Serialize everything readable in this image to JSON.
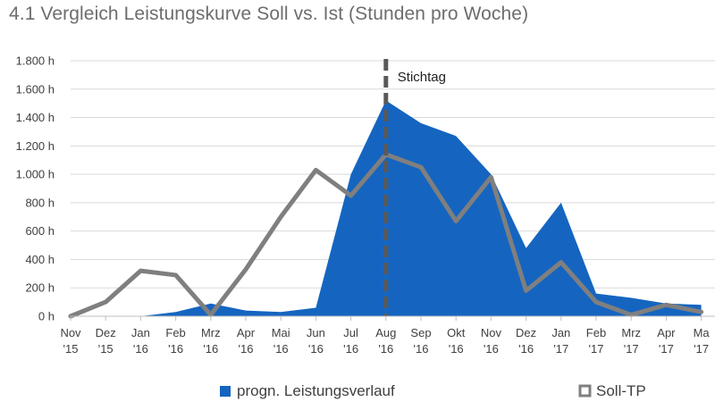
{
  "chart_data": {
    "type": "area",
    "title": "4.1 Vergleich Leistungskurve Soll vs. Ist (Stunden pro Woche)",
    "categories": [
      [
        "Nov",
        "'15"
      ],
      [
        "Dez",
        "'15"
      ],
      [
        "Jan",
        "'16"
      ],
      [
        "Feb",
        "'16"
      ],
      [
        "Mrz",
        "'16"
      ],
      [
        "Apr",
        "'16"
      ],
      [
        "Mai",
        "'16"
      ],
      [
        "Jun",
        "'16"
      ],
      [
        "Jul",
        "'16"
      ],
      [
        "Aug",
        "'16"
      ],
      [
        "Sep",
        "'16"
      ],
      [
        "Okt",
        "'16"
      ],
      [
        "Nov",
        "'16"
      ],
      [
        "Dez",
        "'16"
      ],
      [
        "Jan",
        "'17"
      ],
      [
        "Feb",
        "'17"
      ],
      [
        "Mrz",
        "'17"
      ],
      [
        "Apr",
        "'17"
      ],
      [
        "Ma",
        "'17"
      ]
    ],
    "y_ticks": [
      "0 h",
      "200 h",
      "400 h",
      "600 h",
      "800 h",
      "1.000 h",
      "1.200 h",
      "1.400 h",
      "1.600 h",
      "1.800 h"
    ],
    "ylim": [
      0,
      1800
    ],
    "series": [
      {
        "name": "progn. Leistungsverlauf",
        "kind": "area",
        "color": "#1565c0",
        "values": [
          0,
          0,
          0,
          30,
          90,
          40,
          30,
          60,
          1000,
          1520,
          1360,
          1270,
          1000,
          480,
          800,
          160,
          130,
          90,
          80
        ]
      },
      {
        "name": "Soll-TP",
        "kind": "line",
        "color": "#7f7f7f",
        "values": [
          0,
          100,
          320,
          290,
          10,
          330,
          700,
          1030,
          850,
          1140,
          1050,
          670,
          980,
          180,
          380,
          100,
          10,
          80,
          30
        ]
      }
    ],
    "annotation": {
      "label": "Stichtag",
      "category_index": 9
    },
    "legend": "bottom"
  }
}
